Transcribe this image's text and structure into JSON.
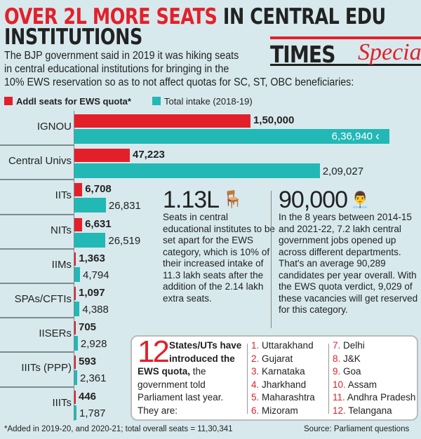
{
  "header": {
    "title_red": "OVER 2L MORE SEATS",
    "title_black_1": " IN CENTRAL EDU",
    "title_black_2": "INSTITUTIONS",
    "brand_bold": "TIMES",
    "brand_italic": "Special",
    "intro": [
      "The BJP government said in 2019 it was hiking seats",
      "in central educational institutions for bringing in the",
      "10% EWS reservation so as to not affect quotas for SC, ST, OBC beneficiaries:"
    ]
  },
  "chart_data": {
    "type": "bar",
    "orientation": "horizontal",
    "categories": [
      "IGNOU",
      "Central Univs",
      "IITs",
      "NITs",
      "IIMs",
      "SPAs/CFTIs",
      "IISERs",
      "IIITs (PPP)",
      "IIITs"
    ],
    "series": [
      {
        "name": "Addl seats for EWS quota*",
        "color": "#e3202a",
        "values": [
          150000,
          47223,
          6708,
          6631,
          1363,
          1097,
          705,
          593,
          446
        ],
        "labels": [
          "1,50,000",
          "47,223",
          "6,708",
          "6,631",
          "1,363",
          "1,097",
          "705",
          "593",
          "446"
        ]
      },
      {
        "name": "Total intake (2018-19)",
        "color": "#22b8b5",
        "values": [
          636940,
          209027,
          26831,
          26519,
          4794,
          4388,
          2928,
          2361,
          1787
        ],
        "labels": [
          "6,36,940",
          "2,09,027",
          "26,831",
          "26,519",
          "4,794",
          "4,388",
          "2,928",
          "2,361",
          "1,787"
        ]
      }
    ],
    "axis_break": "IGNOU total intake bar truncated",
    "legend_placement": "top-left",
    "grid": false
  },
  "stats": {
    "seats": {
      "value": "1.13L",
      "icon": "chair-icon",
      "text": "Seats in central educational institutes to be set apart for the EWS category, which is 10% of their increased intake of 11.3 lakh seats after the addition of the 2.14 lakh extra seats."
    },
    "jobs": {
      "value": "90,000",
      "icon": "person-icon",
      "text": "In the 8 years between 2014-15 and 2021-22, 7.2 lakh central government jobs opened up across different departments. That's an average 90,289 candidates per year overall. With the EWS quota verdict, 9,029 of these vacancies will get reserved for this category."
    }
  },
  "states": {
    "count": "12",
    "bold_text": "States/UTs have introduced the EWS quota,",
    "rest_text": " the government told Parliament last year. They are:",
    "list": [
      {
        "n": "1.",
        "name": "Uttarakhand"
      },
      {
        "n": "2.",
        "name": "Gujarat"
      },
      {
        "n": "3.",
        "name": "Karnataka"
      },
      {
        "n": "4.",
        "name": "Jharkhand"
      },
      {
        "n": "5.",
        "name": "Maharashtra"
      },
      {
        "n": "6.",
        "name": "Mizoram"
      },
      {
        "n": "7.",
        "name": "Delhi"
      },
      {
        "n": "8.",
        "name": "J&K"
      },
      {
        "n": "9.",
        "name": "Goa"
      },
      {
        "n": "10.",
        "name": "Assam"
      },
      {
        "n": "11.",
        "name": "Andhra Pradesh"
      },
      {
        "n": "12.",
        "name": "Telangana"
      }
    ]
  },
  "footer": {
    "note": "*Added in 2019-20, and 2020-21; total overall seats = 11,30,341",
    "source": "Source: Parliament questions"
  }
}
